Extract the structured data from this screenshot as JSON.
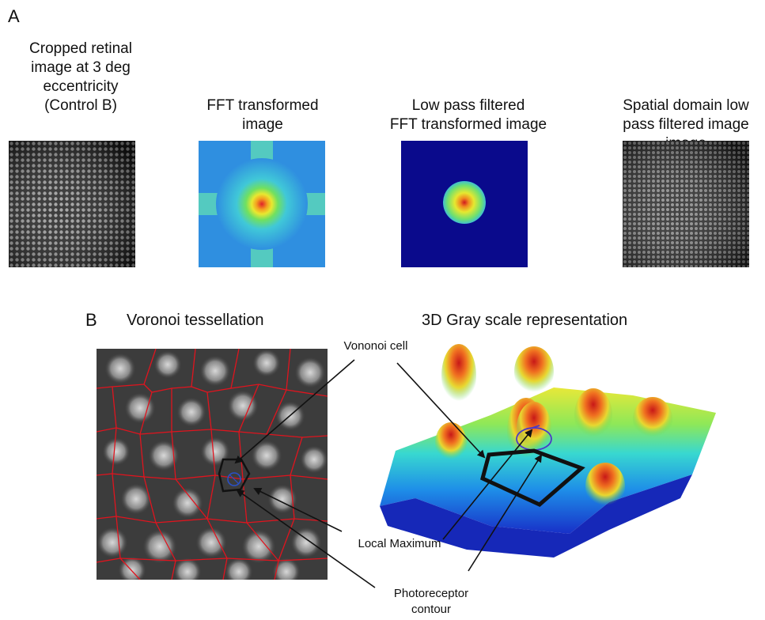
{
  "panel_a": {
    "letter": "A",
    "captions": [
      "Cropped retinal\nimage at 3 deg\neccentricity\n(Control B)",
      "FFT transformed\nimage",
      "Low pass filtered\nFFT transformed image",
      "Spatial domain low\npass filtered image\nimage"
    ]
  },
  "panel_b": {
    "letter": "B",
    "left_title": "Voronoi tessellation",
    "right_title": "3D Gray scale representation",
    "annotations": {
      "cell": "Vononoi cell",
      "local_max": "Local Maximum",
      "contour": "Photoreceptor\ncontour"
    }
  },
  "colors": {
    "voronoi_edge": "#e0141e",
    "fft_bg": "#2f8fe0",
    "lowpass_bg": "#0a0a8c",
    "arrow": "#111111"
  }
}
